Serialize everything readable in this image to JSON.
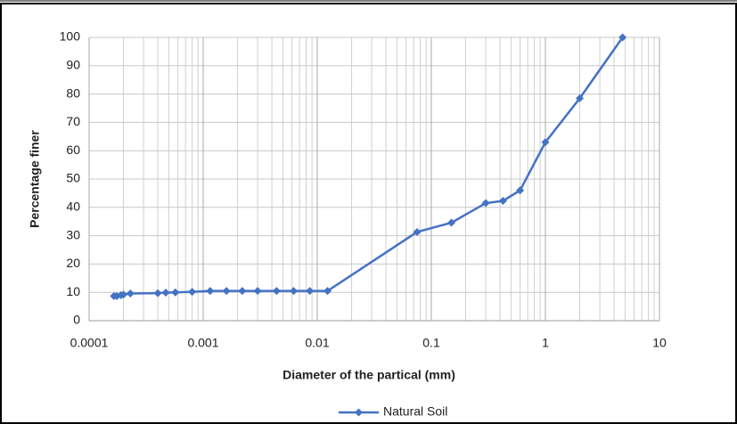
{
  "chart_data": {
    "type": "line",
    "x_label": "Diameter of the partical  (mm)",
    "y_label": "Percentage finer",
    "x": [
      0.000165,
      0.000175,
      0.00019,
      0.0002,
      0.00023,
      0.0004,
      0.00047,
      0.00057,
      0.0008,
      0.00115,
      0.0016,
      0.0022,
      0.003,
      0.0044,
      0.0062,
      0.0086,
      0.0123,
      0.075,
      0.15,
      0.3,
      0.425,
      0.6,
      1.0,
      2.0,
      4.75
    ],
    "series": [
      {
        "name": "Natural Soil",
        "color": "#4472c4",
        "values": [
          8.7,
          8.7,
          9,
          9.2,
          9.6,
          9.7,
          9.9,
          10,
          10.2,
          10.5,
          10.5,
          10.5,
          10.5,
          10.5,
          10.5,
          10.5,
          10.5,
          31.3,
          34.6,
          41.5,
          42.3,
          46,
          63,
          78.5,
          100
        ]
      }
    ],
    "x_log": true,
    "xlim": [
      0.0001,
      10
    ],
    "xticks": [
      0.0001,
      0.001,
      0.01,
      0.1,
      1,
      10
    ],
    "ylim": [
      0,
      100
    ],
    "yticks": [
      0,
      10,
      20,
      30,
      40,
      50,
      60,
      70,
      80,
      90,
      100
    ],
    "grid": true,
    "minor_grid": true,
    "legend": "bottom"
  }
}
